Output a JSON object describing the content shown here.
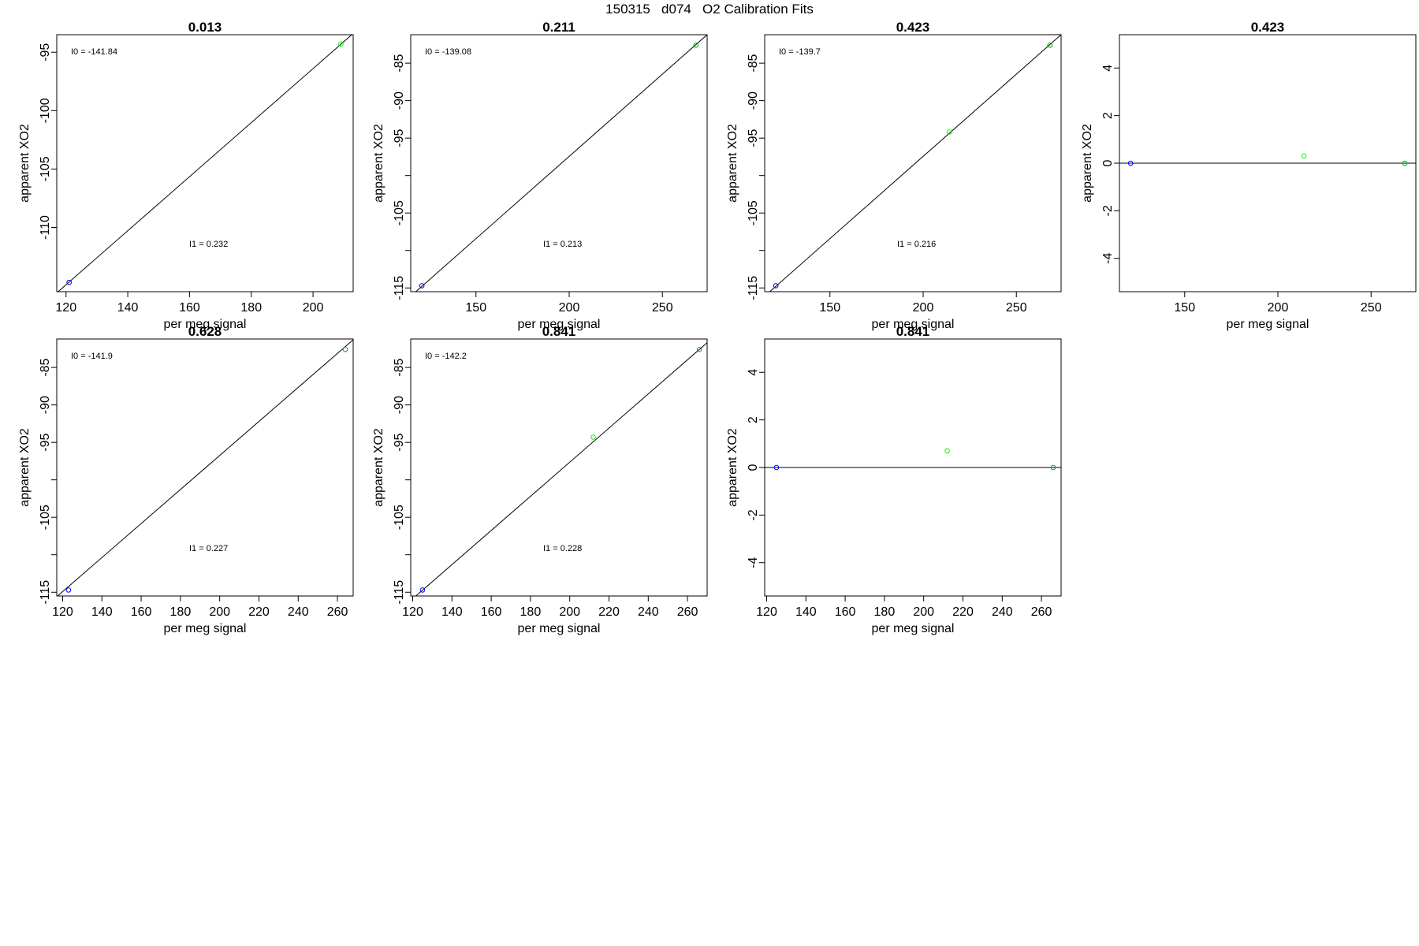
{
  "figure_title": "150315   d074   O2 Calibration Fits",
  "chart_data": [
    {
      "type": "scatter",
      "title": "0.013",
      "xlabel": "per meg signal",
      "ylabel": "apparent XO2",
      "xlim": [
        117,
        213
      ],
      "ylim": [
        -115.5,
        -93.5
      ],
      "xticks": [
        120,
        140,
        160,
        180,
        200
      ],
      "yticks": [
        -110,
        -105,
        -100,
        -95
      ],
      "annotations": [
        "I0 =  -141.84",
        "I1 =  0.232"
      ],
      "reference_line": "fit",
      "points": [
        {
          "x": 121,
          "y": -114.7,
          "color": "#0000ff"
        },
        {
          "x": 209,
          "y": -94.3,
          "color": "#00ff00"
        }
      ],
      "fit_line": [
        [
          117,
          -115.6
        ],
        [
          213,
          -93.4
        ]
      ]
    },
    {
      "type": "scatter",
      "title": "0.211",
      "xlabel": "per meg signal",
      "ylabel": "apparent XO2",
      "xlim": [
        115,
        274
      ],
      "ylim": [
        -115.5,
        -81.2
      ],
      "xticks": [
        150,
        200,
        250
      ],
      "yticks": [
        -115,
        -105,
        -95,
        -90,
        -85
      ],
      "yminor": [
        -110,
        -100
      ],
      "annotations": [
        "I0 =  -139.08",
        "I1 =  0.213"
      ],
      "reference_line": "fit",
      "points": [
        {
          "x": 121,
          "y": -114.7,
          "color": "#0000ff"
        },
        {
          "x": 268,
          "y": -82.6,
          "color": "#00aa00"
        }
      ],
      "fit_line": [
        [
          115,
          -116.1
        ],
        [
          274,
          -81.2
        ]
      ]
    },
    {
      "type": "scatter",
      "title": "0.423",
      "xlabel": "per meg signal",
      "ylabel": "apparent XO2",
      "xlim": [
        115,
        274
      ],
      "ylim": [
        -115.5,
        -81.2
      ],
      "xticks": [
        150,
        200,
        250
      ],
      "yticks": [
        -115,
        -105,
        -95,
        -90,
        -85
      ],
      "yminor": [
        -110,
        -100
      ],
      "annotations": [
        "I0 =  -139.7",
        "I1 =  0.216"
      ],
      "reference_line": "fit",
      "points": [
        {
          "x": 121,
          "y": -114.7,
          "color": "#0000ff"
        },
        {
          "x": 214,
          "y": -94.2,
          "color": "#00ff00"
        },
        {
          "x": 268,
          "y": -82.6,
          "color": "#00aa00"
        }
      ],
      "fit_line": [
        [
          115,
          -116.1
        ],
        [
          274,
          -81.2
        ]
      ]
    },
    {
      "type": "scatter",
      "title": "0.423",
      "xlabel": "per meg signal",
      "ylabel": "apparent XO2",
      "xlim": [
        115,
        274
      ],
      "ylim": [
        -5.4,
        5.4
      ],
      "xticks": [
        150,
        200,
        250
      ],
      "yticks": [
        -4,
        -2,
        0,
        2,
        4
      ],
      "reference_line": "zero",
      "points": [
        {
          "x": 121,
          "y": 0.0,
          "color": "#0000ff"
        },
        {
          "x": 214,
          "y": 0.3,
          "color": "#00ff00"
        },
        {
          "x": 268,
          "y": 0.0,
          "color": "#00aa00"
        }
      ]
    },
    {
      "type": "scatter",
      "title": "0.628",
      "xlabel": "per meg signal",
      "ylabel": "apparent XO2",
      "xlim": [
        117,
        268
      ],
      "ylim": [
        -115.5,
        -81.2
      ],
      "xticks": [
        120,
        140,
        160,
        180,
        200,
        220,
        240,
        260
      ],
      "yticks": [
        -115,
        -105,
        -95,
        -90,
        -85
      ],
      "yminor": [
        -110,
        -100
      ],
      "annotations": [
        "I0 =  -141.9",
        "I1 =  0.227"
      ],
      "reference_line": "fit",
      "points": [
        {
          "x": 123,
          "y": -114.7,
          "color": "#0000ff"
        },
        {
          "x": 264,
          "y": -82.6,
          "color": "#00aa00"
        }
      ],
      "fit_line": [
        [
          117,
          -115.6
        ],
        [
          268,
          -81.3
        ]
      ]
    },
    {
      "type": "scatter",
      "title": "0.841",
      "xlabel": "per meg signal",
      "ylabel": "apparent XO2",
      "xlim": [
        119,
        270
      ],
      "ylim": [
        -115.5,
        -81.2
      ],
      "xticks": [
        120,
        140,
        160,
        180,
        200,
        220,
        240,
        260
      ],
      "yticks": [
        -115,
        -105,
        -95,
        -90,
        -85
      ],
      "yminor": [
        -110,
        -100
      ],
      "annotations": [
        "I0 =  -142.2",
        "I1 =  0.228"
      ],
      "reference_line": "fit",
      "points": [
        {
          "x": 125,
          "y": -114.7,
          "color": "#0000ff"
        },
        {
          "x": 212,
          "y": -94.3,
          "color": "#00ff00"
        },
        {
          "x": 266,
          "y": -82.6,
          "color": "#00aa00"
        }
      ],
      "fit_line": [
        [
          119,
          -116.1
        ],
        [
          270,
          -81.7
        ]
      ]
    },
    {
      "type": "scatter",
      "title": "0.841",
      "xlabel": "per meg signal",
      "ylabel": "apparent XO2",
      "xlim": [
        119,
        270
      ],
      "ylim": [
        -5.4,
        5.4
      ],
      "xticks": [
        120,
        140,
        160,
        180,
        200,
        220,
        240,
        260
      ],
      "yticks": [
        -4,
        -2,
        0,
        2,
        4
      ],
      "reference_line": "zero",
      "points": [
        {
          "x": 125,
          "y": 0.0,
          "color": "#0000ff"
        },
        {
          "x": 212,
          "y": 0.7,
          "color": "#00ff00"
        },
        {
          "x": 266,
          "y": 0.0,
          "color": "#00aa00"
        }
      ]
    }
  ]
}
